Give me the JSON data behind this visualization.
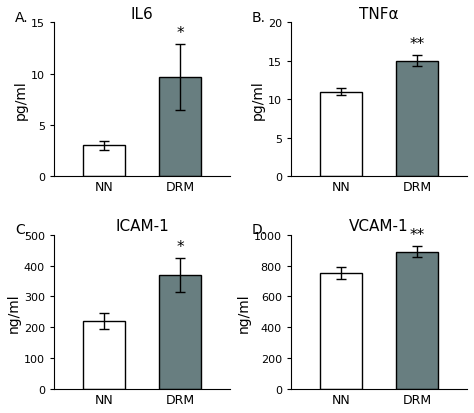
{
  "panels": [
    {
      "label": "A.",
      "title": "IL6",
      "ylabel": "pg/ml",
      "ylim": [
        0,
        15
      ],
      "yticks": [
        0,
        5,
        10,
        15
      ],
      "categories": [
        "NN",
        "DRM"
      ],
      "values": [
        3.0,
        9.7
      ],
      "errors": [
        0.4,
        3.2
      ],
      "colors": [
        "white",
        "#687e80"
      ],
      "significance": [
        "",
        "*"
      ],
      "sig_fontsize": 11
    },
    {
      "label": "B.",
      "title": "TNFα",
      "ylabel": "pg/ml",
      "ylim": [
        0,
        20
      ],
      "yticks": [
        0,
        5,
        10,
        15,
        20
      ],
      "categories": [
        "NN",
        "DRM"
      ],
      "values": [
        11.0,
        15.0
      ],
      "errors": [
        0.5,
        0.7
      ],
      "colors": [
        "white",
        "#687e80"
      ],
      "significance": [
        "",
        "**"
      ],
      "sig_fontsize": 11
    },
    {
      "label": "C.",
      "title": "ICAM-1",
      "ylabel": "ng/ml",
      "ylim": [
        0,
        500
      ],
      "yticks": [
        0,
        100,
        200,
        300,
        400,
        500
      ],
      "categories": [
        "NN",
        "DRM"
      ],
      "values": [
        220,
        370
      ],
      "errors": [
        25,
        55
      ],
      "colors": [
        "white",
        "#687e80"
      ],
      "significance": [
        "",
        "*"
      ],
      "sig_fontsize": 11
    },
    {
      "label": "D.",
      "title": "VCAM-1",
      "ylabel": "ng/ml",
      "ylim": [
        0,
        1000
      ],
      "yticks": [
        0,
        200,
        400,
        600,
        800,
        1000
      ],
      "categories": [
        "NN",
        "DRM"
      ],
      "values": [
        750,
        890
      ],
      "errors": [
        40,
        35
      ],
      "colors": [
        "white",
        "#687e80"
      ],
      "significance": [
        "",
        "**"
      ],
      "sig_fontsize": 11
    }
  ],
  "bar_width": 0.55,
  "bar_edge_color": "black",
  "bar_edge_width": 1.0,
  "background_color": "white",
  "label_fontsize": 10,
  "title_fontsize": 11,
  "tick_fontsize": 8,
  "xlabel_fontsize": 9
}
